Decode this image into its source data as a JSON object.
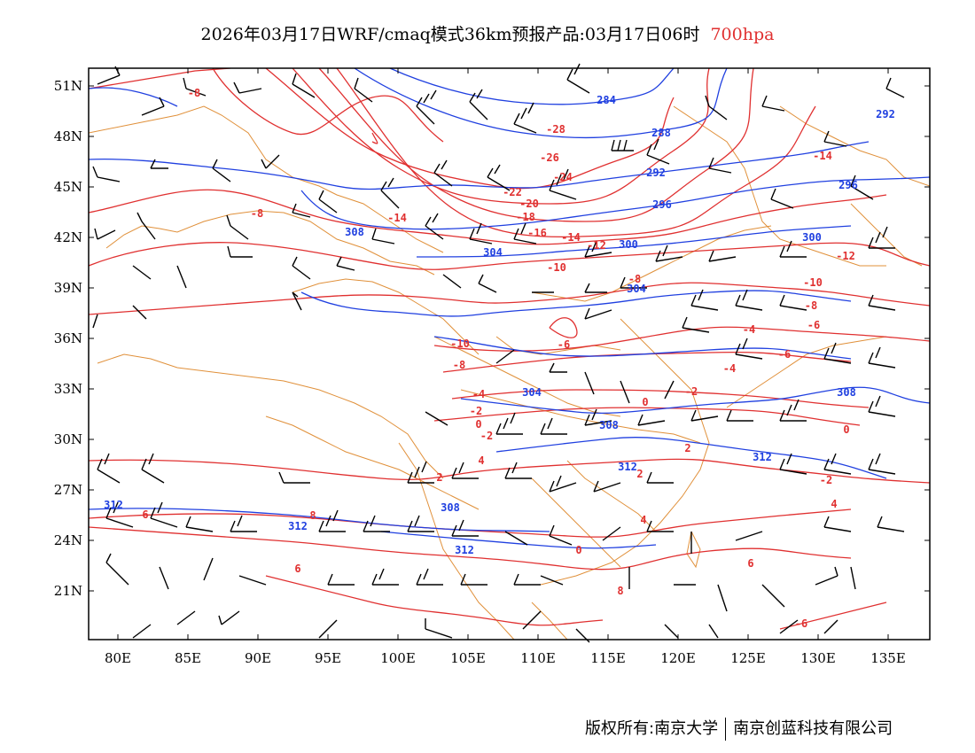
{
  "header": {
    "title": "2026年03月17日WRF/cmaq模式36km预报产品:03月17日06时",
    "level": "700hpa"
  },
  "colors": {
    "temperature": "#e03030",
    "height": "#2040e0",
    "border": "#e0903a",
    "wind": "#000000"
  },
  "axes": {
    "lat_labels": [
      "51N",
      "48N",
      "45N",
      "42N",
      "39N",
      "36N",
      "33N",
      "30N",
      "27N",
      "24N",
      "21N"
    ],
    "lon_labels": [
      "80E",
      "85E",
      "90E",
      "95E",
      "100E",
      "105E",
      "110E",
      "115E",
      "120E",
      "125E",
      "130E",
      "135E"
    ]
  },
  "temperature_labels": [
    "-8",
    "-28",
    "-26",
    "-24",
    "-22",
    "-20",
    "-18",
    "-16",
    "-14",
    "-12",
    "-14",
    "-10",
    "-8",
    "-8",
    "-10",
    "-8",
    "-6",
    "-4",
    "-2",
    "0",
    "-2",
    "-4",
    "-6",
    "-10",
    "-12",
    "-14",
    "-8",
    "-6",
    "-4",
    "-2",
    "0",
    "2",
    "4",
    "6",
    "8",
    "0",
    "-2",
    "2",
    "4",
    "6",
    "8",
    "6",
    "4",
    "2",
    "0",
    "-6"
  ],
  "height_labels": [
    "284",
    "288",
    "292",
    "296",
    "292",
    "296",
    "300",
    "304",
    "300",
    "304",
    "308",
    "304",
    "308",
    "308",
    "312",
    "312",
    "312",
    "312",
    "308",
    "312"
  ],
  "footer": {
    "copyright": "版权所有:南京大学",
    "company": "南京创蓝科技有限公司"
  }
}
